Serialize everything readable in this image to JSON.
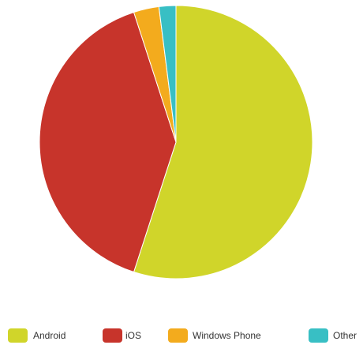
{
  "chart_data": {
    "type": "pie",
    "title": "",
    "slices": [
      {
        "label": "Android",
        "value": 55.0,
        "color": "#d0d52a"
      },
      {
        "label": "iOS",
        "value": 40.0,
        "color": "#c7342b"
      },
      {
        "label": "Windows Phone",
        "value": 3.0,
        "color": "#f3ab1d"
      },
      {
        "label": "Other",
        "value": 2.0,
        "color": "#38bfc4"
      }
    ],
    "legend_position": "bottom"
  }
}
